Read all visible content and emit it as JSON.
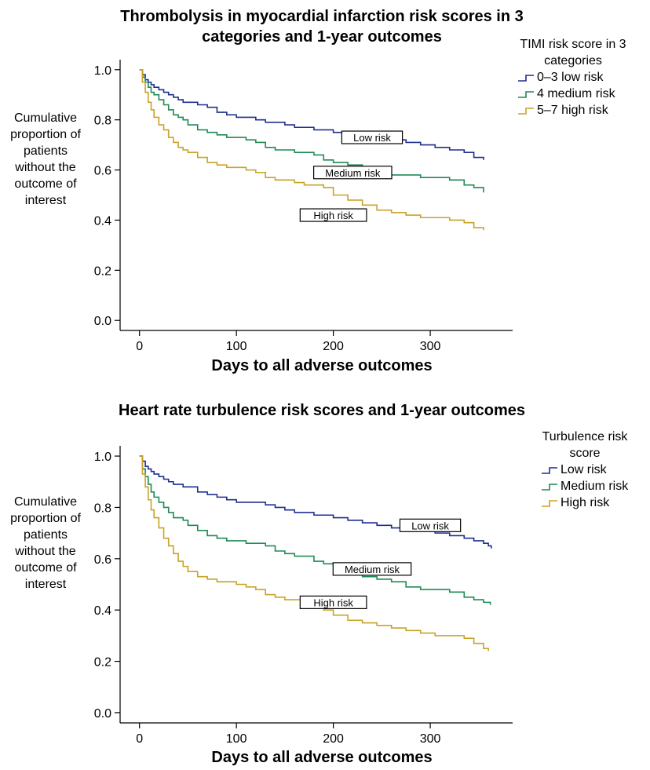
{
  "chart_data": [
    {
      "type": "line",
      "title": "Thrombolysis in myocardial infarction risk scores in 3 categories and 1-year outcomes",
      "xlabel": "Days to all adverse outcomes",
      "ylabel": "Cumulative proportion of patients without the outcome of interest",
      "xlim": [
        -20,
        385
      ],
      "ylim": [
        -0.04,
        1.04
      ],
      "xticks": [
        0,
        100,
        200,
        300
      ],
      "yticks": [
        0.0,
        0.2,
        0.4,
        0.6,
        0.8,
        1.0
      ],
      "ytick_labels": [
        "0.0",
        "0.2",
        "0.4",
        "0.6",
        "0.8",
        "1.0"
      ],
      "legend_title": "TIMI risk score in 3 categories",
      "legend_position": "top-right",
      "step": true,
      "series": [
        {
          "name": "0–3 low risk",
          "color": "#1f2f8f",
          "annotation": "Low risk",
          "annotation_at": [
            240,
            0.73
          ],
          "x": [
            0,
            3,
            6,
            9,
            12,
            15,
            20,
            25,
            30,
            35,
            40,
            45,
            50,
            60,
            70,
            80,
            90,
            100,
            110,
            120,
            130,
            140,
            150,
            160,
            170,
            180,
            190,
            200,
            215,
            230,
            245,
            260,
            275,
            290,
            305,
            320,
            335,
            345,
            355
          ],
          "y": [
            1.0,
            0.98,
            0.96,
            0.95,
            0.94,
            0.93,
            0.92,
            0.91,
            0.9,
            0.89,
            0.88,
            0.87,
            0.87,
            0.86,
            0.85,
            0.83,
            0.82,
            0.81,
            0.81,
            0.8,
            0.79,
            0.79,
            0.78,
            0.77,
            0.77,
            0.76,
            0.76,
            0.75,
            0.74,
            0.73,
            0.73,
            0.72,
            0.71,
            0.7,
            0.69,
            0.68,
            0.67,
            0.65,
            0.64
          ]
        },
        {
          "name": "4 medium risk",
          "color": "#1f8a55",
          "annotation": "Medium risk",
          "annotation_at": [
            220,
            0.59
          ],
          "x": [
            0,
            3,
            6,
            9,
            12,
            15,
            20,
            25,
            30,
            35,
            40,
            45,
            50,
            60,
            70,
            80,
            90,
            100,
            110,
            120,
            130,
            140,
            150,
            160,
            170,
            180,
            190,
            200,
            215,
            230,
            245,
            260,
            275,
            290,
            305,
            320,
            335,
            345,
            355
          ],
          "y": [
            1.0,
            0.97,
            0.95,
            0.93,
            0.91,
            0.9,
            0.88,
            0.86,
            0.84,
            0.82,
            0.81,
            0.8,
            0.78,
            0.76,
            0.75,
            0.74,
            0.73,
            0.73,
            0.72,
            0.71,
            0.69,
            0.68,
            0.68,
            0.67,
            0.67,
            0.66,
            0.64,
            0.63,
            0.62,
            0.6,
            0.59,
            0.58,
            0.58,
            0.57,
            0.57,
            0.56,
            0.54,
            0.53,
            0.51
          ]
        },
        {
          "name": "5–7 high risk",
          "color": "#c9a227",
          "annotation": "High risk",
          "annotation_at": [
            200,
            0.42
          ],
          "x": [
            0,
            3,
            6,
            9,
            12,
            15,
            20,
            25,
            30,
            35,
            40,
            45,
            50,
            60,
            70,
            80,
            90,
            100,
            110,
            120,
            130,
            140,
            150,
            160,
            170,
            180,
            190,
            200,
            215,
            230,
            245,
            260,
            275,
            290,
            305,
            320,
            335,
            345,
            355
          ],
          "y": [
            1.0,
            0.95,
            0.91,
            0.87,
            0.84,
            0.81,
            0.78,
            0.76,
            0.73,
            0.71,
            0.69,
            0.68,
            0.67,
            0.65,
            0.63,
            0.62,
            0.61,
            0.61,
            0.6,
            0.59,
            0.57,
            0.56,
            0.56,
            0.55,
            0.54,
            0.54,
            0.53,
            0.5,
            0.48,
            0.46,
            0.44,
            0.43,
            0.42,
            0.41,
            0.41,
            0.4,
            0.39,
            0.37,
            0.36
          ]
        }
      ]
    },
    {
      "type": "line",
      "title": "Heart rate turbulence risk scores and 1-year outcomes",
      "xlabel": "Days to all adverse outcomes",
      "ylabel": "Cumulative proportion of patients without the outcome of interest",
      "xlim": [
        -20,
        385
      ],
      "ylim": [
        -0.04,
        1.04
      ],
      "xticks": [
        0,
        100,
        200,
        300
      ],
      "yticks": [
        0.0,
        0.2,
        0.4,
        0.6,
        0.8,
        1.0
      ],
      "ytick_labels": [
        "0.0",
        "0.2",
        "0.4",
        "0.6",
        "0.8",
        "1.0"
      ],
      "legend_title": "Turbulence risk score",
      "legend_position": "top-right",
      "step": true,
      "series": [
        {
          "name": "Low risk",
          "color": "#1f2f8f",
          "annotation": "Low risk",
          "annotation_at": [
            300,
            0.73
          ],
          "x": [
            0,
            3,
            6,
            9,
            12,
            15,
            20,
            25,
            30,
            35,
            40,
            45,
            50,
            60,
            70,
            80,
            90,
            100,
            110,
            120,
            130,
            140,
            150,
            160,
            170,
            180,
            190,
            200,
            215,
            230,
            245,
            260,
            275,
            290,
            305,
            320,
            335,
            345,
            355,
            360,
            363
          ],
          "y": [
            1.0,
            0.98,
            0.96,
            0.95,
            0.94,
            0.93,
            0.92,
            0.91,
            0.9,
            0.89,
            0.89,
            0.88,
            0.88,
            0.86,
            0.85,
            0.84,
            0.83,
            0.82,
            0.82,
            0.82,
            0.81,
            0.8,
            0.79,
            0.78,
            0.78,
            0.77,
            0.77,
            0.76,
            0.75,
            0.74,
            0.73,
            0.72,
            0.71,
            0.71,
            0.7,
            0.69,
            0.68,
            0.67,
            0.66,
            0.65,
            0.64
          ]
        },
        {
          "name": "Medium risk",
          "color": "#1f8a55",
          "annotation": "Medium risk",
          "annotation_at": [
            240,
            0.56
          ],
          "x": [
            0,
            3,
            6,
            9,
            12,
            15,
            20,
            25,
            30,
            35,
            40,
            45,
            50,
            60,
            70,
            80,
            90,
            100,
            110,
            120,
            130,
            140,
            150,
            160,
            170,
            180,
            190,
            200,
            215,
            230,
            245,
            260,
            275,
            290,
            305,
            320,
            335,
            345,
            355,
            362
          ],
          "y": [
            1.0,
            0.95,
            0.92,
            0.89,
            0.86,
            0.84,
            0.82,
            0.8,
            0.78,
            0.76,
            0.76,
            0.75,
            0.73,
            0.71,
            0.69,
            0.68,
            0.67,
            0.67,
            0.66,
            0.66,
            0.65,
            0.63,
            0.62,
            0.61,
            0.61,
            0.59,
            0.58,
            0.57,
            0.55,
            0.53,
            0.52,
            0.51,
            0.49,
            0.48,
            0.48,
            0.47,
            0.45,
            0.44,
            0.43,
            0.42
          ]
        },
        {
          "name": "High risk",
          "color": "#c9a227",
          "annotation": "High risk",
          "annotation_at": [
            200,
            0.43
          ],
          "x": [
            0,
            3,
            6,
            9,
            12,
            15,
            20,
            25,
            30,
            35,
            40,
            45,
            50,
            60,
            70,
            80,
            90,
            100,
            110,
            120,
            130,
            140,
            150,
            160,
            170,
            180,
            190,
            200,
            215,
            230,
            245,
            260,
            275,
            290,
            305,
            320,
            335,
            345,
            355,
            360
          ],
          "y": [
            1.0,
            0.93,
            0.88,
            0.83,
            0.79,
            0.76,
            0.72,
            0.68,
            0.65,
            0.62,
            0.59,
            0.57,
            0.55,
            0.53,
            0.52,
            0.51,
            0.51,
            0.5,
            0.49,
            0.48,
            0.46,
            0.45,
            0.44,
            0.44,
            0.43,
            0.43,
            0.4,
            0.38,
            0.36,
            0.35,
            0.34,
            0.33,
            0.32,
            0.31,
            0.3,
            0.3,
            0.29,
            0.27,
            0.25,
            0.24
          ]
        }
      ]
    }
  ]
}
